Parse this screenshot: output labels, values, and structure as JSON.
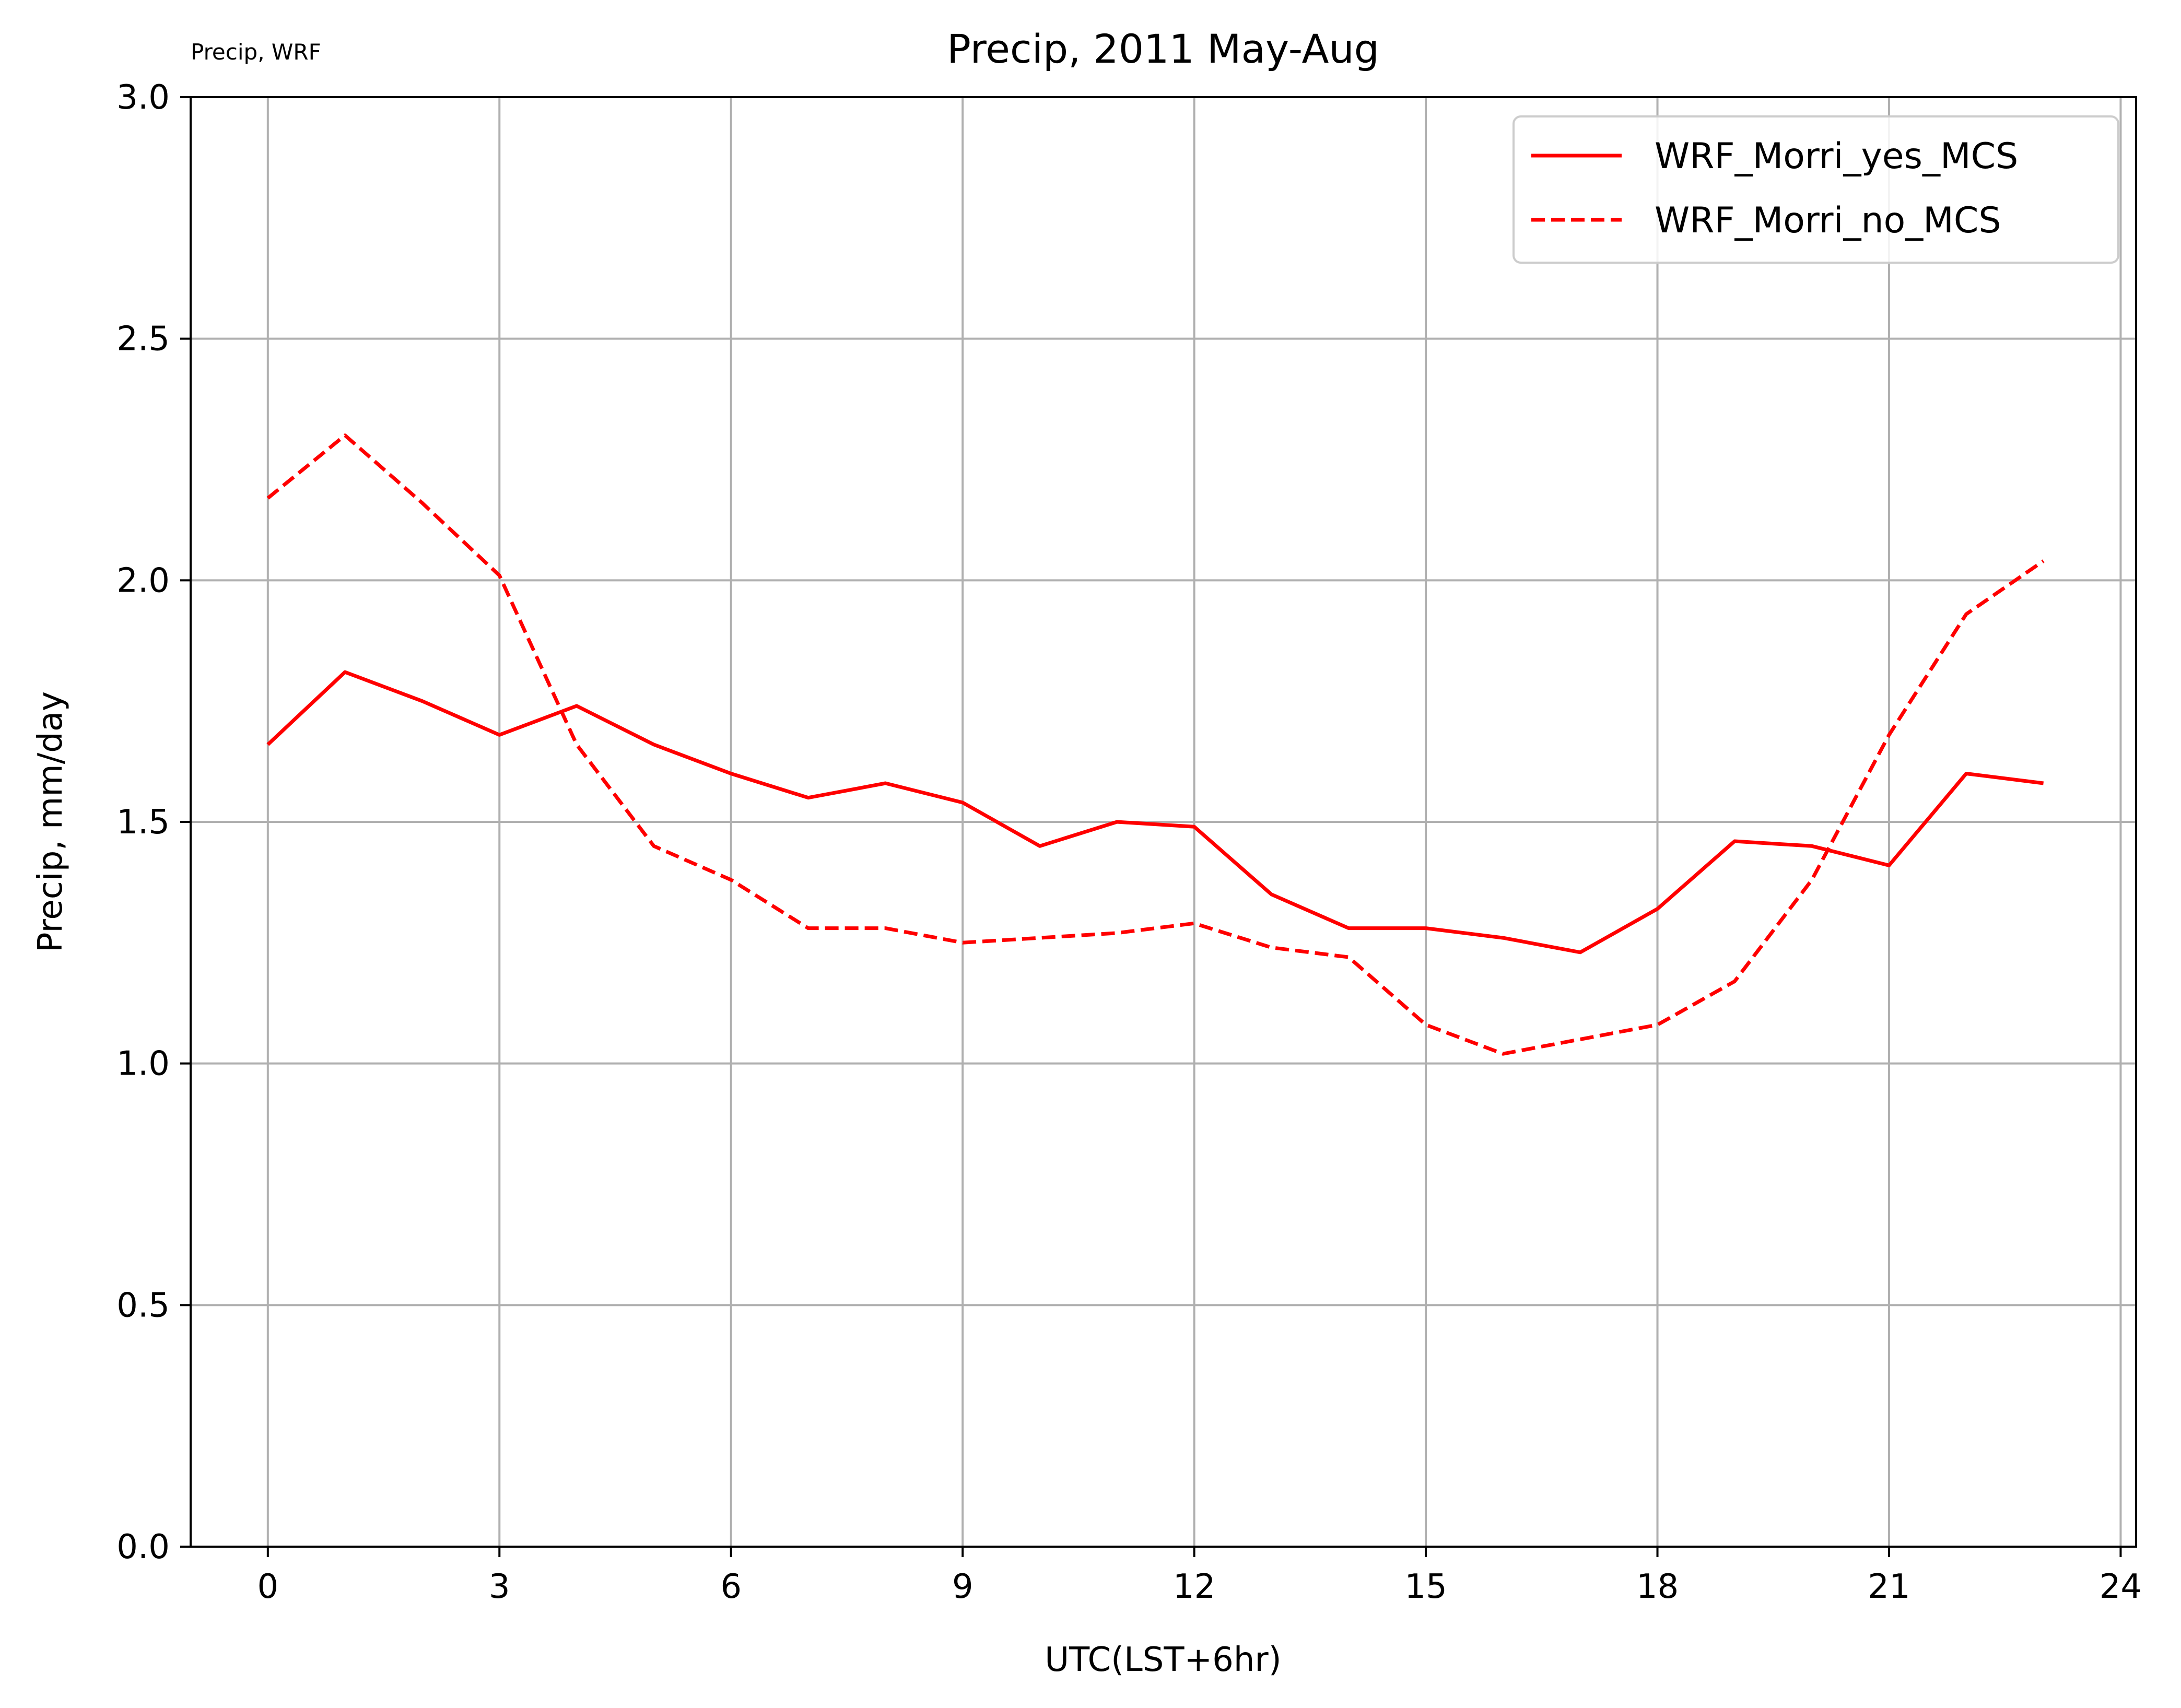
{
  "chart_data": {
    "type": "line",
    "title": "Precip, 2011 May-Aug",
    "corner_note": "Precip, WRF",
    "xlabel": "UTC(LST+6hr)",
    "ylabel": "Precip, mm/day",
    "xlim": [
      -1,
      24.2
    ],
    "ylim": [
      0,
      3
    ],
    "xticks": [
      0,
      3,
      6,
      9,
      12,
      15,
      18,
      21,
      24
    ],
    "yticks": [
      0.0,
      0.5,
      1.0,
      1.5,
      2.0,
      2.5,
      3.0
    ],
    "ytick_labels": [
      "0.0",
      "0.5",
      "1.0",
      "1.5",
      "2.0",
      "2.5",
      "3.0"
    ],
    "grid": true,
    "legend_position": "top-right",
    "x": [
      0,
      1,
      2,
      3,
      4,
      5,
      6,
      7,
      8,
      9,
      10,
      11,
      12,
      13,
      14,
      15,
      16,
      17,
      18,
      19,
      20,
      21,
      22,
      23
    ],
    "series": [
      {
        "name": "WRF_Morri_yes_MCS",
        "color": "#ff0000",
        "style": "solid",
        "values": [
          1.66,
          1.81,
          1.75,
          1.68,
          1.74,
          1.66,
          1.6,
          1.55,
          1.58,
          1.54,
          1.45,
          1.5,
          1.49,
          1.35,
          1.28,
          1.28,
          1.26,
          1.23,
          1.32,
          1.46,
          1.45,
          1.41,
          1.6,
          1.58
        ]
      },
      {
        "name": "WRF_Morri_no_MCS",
        "color": "#ff0000",
        "style": "dashed",
        "values": [
          2.17,
          2.3,
          2.16,
          2.01,
          1.66,
          1.45,
          1.38,
          1.28,
          1.28,
          1.25,
          1.26,
          1.27,
          1.29,
          1.24,
          1.22,
          1.08,
          1.02,
          1.05,
          1.08,
          1.17,
          1.38,
          1.68,
          1.93,
          2.04
        ]
      }
    ]
  }
}
